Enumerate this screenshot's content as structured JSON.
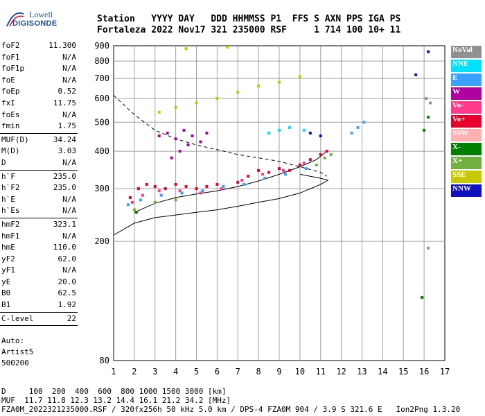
{
  "logo": {
    "line1": "Lowell",
    "line2": "DIGISONDE"
  },
  "header": {
    "labels": [
      "Station",
      "YYYY",
      "DAY",
      "DDD",
      "HHMMSS",
      "P1",
      "FFS",
      "S",
      "AXN",
      "PPS",
      "IGA",
      "PS"
    ],
    "values": [
      "Fortaleza",
      "2022",
      "Nov17",
      "321",
      "235000",
      "RSF",
      "",
      "1",
      "714",
      "100",
      "10+",
      "11"
    ]
  },
  "params": [
    {
      "name": "foF2",
      "value": "11.300"
    },
    {
      "name": "foF1",
      "value": "N/A"
    },
    {
      "name": "foF1p",
      "value": "N/A"
    },
    {
      "name": "foE",
      "value": "N/A"
    },
    {
      "name": "foEp",
      "value": "0.52"
    },
    {
      "name": "fxI",
      "value": "11.75"
    },
    {
      "name": "foEs",
      "value": "N/A"
    },
    {
      "name": "fmin",
      "value": "1.75"
    },
    {
      "sep": true
    },
    {
      "name": "MUF(D)",
      "value": "34.24"
    },
    {
      "name": "M(D)",
      "value": "3.03"
    },
    {
      "name": "D",
      "value": "N/A"
    },
    {
      "sep": true
    },
    {
      "name": "h`F",
      "value": "235.0"
    },
    {
      "name": "h`F2",
      "value": "235.0"
    },
    {
      "name": "h`E",
      "value": "N/A"
    },
    {
      "name": "h`Es",
      "value": "N/A"
    },
    {
      "sep": true
    },
    {
      "name": "hmF2",
      "value": "323.1"
    },
    {
      "name": "hmF1",
      "value": "N/A"
    },
    {
      "name": "hmE",
      "value": "110.0"
    },
    {
      "name": "yF2",
      "value": "62.0"
    },
    {
      "name": "yF1",
      "value": "N/A"
    },
    {
      "name": "yE",
      "value": "20.0"
    },
    {
      "name": "B0",
      "value": "62.5"
    },
    {
      "name": "B1",
      "value": "1.92"
    },
    {
      "sep": true
    },
    {
      "name": "C-level",
      "value": "22"
    },
    {
      "sep": true
    }
  ],
  "auto": {
    "line1": "Auto:",
    "line2": "Artist5",
    "line3": "500200"
  },
  "legend": [
    {
      "label": "NoVal",
      "color": "#909090"
    },
    {
      "label": "NNE",
      "color": "#00e0ff"
    },
    {
      "label": "E",
      "color": "#3aa0ff"
    },
    {
      "label": "W",
      "color": "#b000a0"
    },
    {
      "label": "Vo-",
      "color": "#ff3a8a"
    },
    {
      "label": "Vo+",
      "color": "#e8002a"
    },
    {
      "label": "SSW",
      "color": "#ffb0b0"
    },
    {
      "label": "X-",
      "color": "#008000"
    },
    {
      "label": "X+",
      "color": "#70b040"
    },
    {
      "label": "SSE",
      "color": "#c8c800"
    },
    {
      "label": "NNW",
      "color": "#1010c0"
    }
  ],
  "footer": {
    "line1": "D     100  200  400  600  800 1000 1500 3000 [km]",
    "line2": "MUF  11.7 11.8 12.3 13.2 14.4 16.1 21.2 34.2 [MHz]",
    "line3": "FZA0M_2022321235000.RSF / 320fx256h 50 kHz 5.0 km / DPS-4 FZA0M 904 / 3.9 S 321.6 E   Ion2Png 1.3.20"
  },
  "chart_data": {
    "type": "scatter",
    "x_ticks": [
      1,
      2,
      3,
      4,
      5,
      6,
      7,
      8,
      9,
      10,
      11,
      12,
      13,
      14,
      15,
      16,
      17
    ],
    "y_ticks": [
      80,
      200,
      300,
      400,
      500,
      600,
      700,
      800,
      900
    ],
    "xlim": [
      1,
      17
    ],
    "ylim": [
      80,
      900
    ],
    "y_scale": "log",
    "series": [
      {
        "name": "Vo+",
        "color": "#e8002a",
        "points": [
          [
            1.8,
            280
          ],
          [
            2.2,
            300
          ],
          [
            2.6,
            310
          ],
          [
            3,
            305
          ],
          [
            3.5,
            300
          ],
          [
            4,
            310
          ],
          [
            4.5,
            305
          ],
          [
            5,
            300
          ],
          [
            5.5,
            305
          ],
          [
            6,
            310
          ],
          [
            7,
            315
          ],
          [
            7.5,
            330
          ],
          [
            8,
            345
          ],
          [
            8.5,
            340
          ],
          [
            9,
            350
          ],
          [
            9.5,
            345
          ],
          [
            10,
            360
          ],
          [
            10.5,
            375
          ],
          [
            11,
            390
          ],
          [
            11.3,
            400
          ]
        ]
      },
      {
        "name": "Vo-",
        "color": "#ff3a8a",
        "points": [
          [
            1.9,
            270
          ],
          [
            2.4,
            285
          ],
          [
            3.2,
            295
          ],
          [
            4.2,
            295
          ],
          [
            5.2,
            290
          ],
          [
            6.2,
            300
          ],
          [
            7.2,
            320
          ],
          [
            8.2,
            335
          ],
          [
            9.2,
            345
          ],
          [
            10.2,
            365
          ]
        ]
      },
      {
        "name": "E",
        "color": "#3aa0ff",
        "points": [
          [
            1.7,
            265
          ],
          [
            2.3,
            275
          ],
          [
            3.3,
            285
          ],
          [
            4.3,
            290
          ],
          [
            5.3,
            295
          ],
          [
            6.3,
            305
          ],
          [
            7.3,
            310
          ],
          [
            8.3,
            325
          ],
          [
            9.3,
            335
          ],
          [
            10.3,
            350
          ],
          [
            12.5,
            460
          ],
          [
            12.8,
            480
          ],
          [
            13.1,
            500
          ]
        ]
      },
      {
        "name": "W",
        "color": "#b000a0",
        "points": [
          [
            3.2,
            450
          ],
          [
            3.6,
            460
          ],
          [
            4,
            440
          ],
          [
            4.4,
            470
          ],
          [
            4.8,
            450
          ],
          [
            5.2,
            430
          ],
          [
            5.5,
            460
          ],
          [
            4.2,
            400
          ],
          [
            3.8,
            380
          ],
          [
            4.6,
            420
          ]
        ]
      },
      {
        "name": "SSE",
        "color": "#c8c800",
        "points": [
          [
            3.2,
            540
          ],
          [
            4,
            560
          ],
          [
            5,
            580
          ],
          [
            6,
            600
          ],
          [
            7,
            630
          ],
          [
            8,
            660
          ],
          [
            9,
            680
          ],
          [
            10,
            710
          ],
          [
            4.5,
            880
          ],
          [
            6.5,
            890
          ]
        ]
      },
      {
        "name": "X+",
        "color": "#70b040",
        "points": [
          [
            2,
            255
          ],
          [
            3,
            270
          ],
          [
            4,
            275
          ],
          [
            10.8,
            360
          ],
          [
            11.2,
            380
          ],
          [
            11.5,
            390
          ]
        ]
      },
      {
        "name": "X-",
        "color": "#008000",
        "points": [
          [
            2.1,
            250
          ],
          [
            16,
            470
          ],
          [
            16.2,
            520
          ],
          [
            15.9,
            130
          ]
        ]
      },
      {
        "name": "NNE",
        "color": "#00e0ff",
        "points": [
          [
            8.5,
            460
          ],
          [
            9,
            470
          ],
          [
            9.5,
            480
          ],
          [
            10.2,
            470
          ]
        ]
      },
      {
        "name": "NNW",
        "color": "#1010c0",
        "points": [
          [
            10.5,
            460
          ],
          [
            11,
            450
          ],
          [
            15.6,
            720
          ],
          [
            16.2,
            860
          ]
        ]
      },
      {
        "name": "NoVal",
        "color": "#909090",
        "points": [
          [
            16.1,
            600
          ],
          [
            16.3,
            580
          ],
          [
            16.2,
            190
          ]
        ]
      }
    ],
    "curves": [
      {
        "style": "dashed",
        "points": [
          [
            1,
            615
          ],
          [
            2,
            530
          ],
          [
            3,
            470
          ],
          [
            4,
            440
          ],
          [
            5,
            420
          ],
          [
            6,
            405
          ],
          [
            7,
            390
          ],
          [
            8,
            380
          ],
          [
            9,
            370
          ],
          [
            10,
            355
          ],
          [
            11,
            340
          ],
          [
            11.3,
            330
          ]
        ]
      },
      {
        "style": "solid",
        "points": [
          [
            1,
            210
          ],
          [
            2,
            230
          ],
          [
            3,
            240
          ],
          [
            4,
            245
          ],
          [
            5,
            250
          ],
          [
            6,
            255
          ],
          [
            7,
            262
          ],
          [
            8,
            270
          ],
          [
            9,
            278
          ],
          [
            10,
            290
          ],
          [
            11,
            310
          ],
          [
            11.35,
            320
          ],
          [
            11,
            325
          ],
          [
            10,
            335
          ]
        ]
      },
      {
        "style": "solid",
        "points": [
          [
            2,
            250
          ],
          [
            3,
            268
          ],
          [
            4,
            280
          ],
          [
            5,
            288
          ],
          [
            6,
            295
          ],
          [
            7,
            305
          ],
          [
            8,
            318
          ],
          [
            9,
            335
          ],
          [
            10,
            355
          ],
          [
            10.8,
            375
          ],
          [
            11.3,
            400
          ]
        ]
      }
    ]
  }
}
